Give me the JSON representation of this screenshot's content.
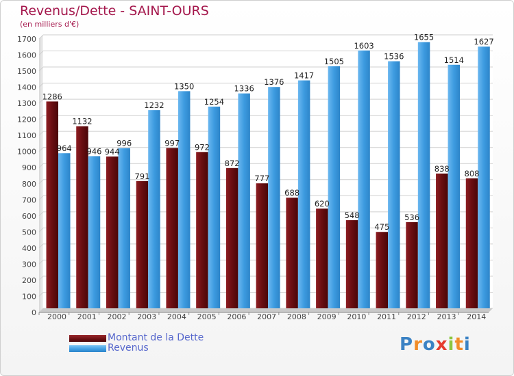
{
  "header": {
    "title": "Revenus/Dette - SAINT-OURS",
    "subtitle": "(en milliers d'€)"
  },
  "legend": {
    "items": [
      {
        "label": "Montant de la Dette",
        "color": "#6b0f12"
      },
      {
        "label": "Revenus",
        "color": "#3d9be0"
      }
    ]
  },
  "logo": {
    "text": "Proxiti",
    "letters": [
      "P",
      "r",
      "o",
      "x",
      "i",
      "t",
      "i"
    ],
    "colors": [
      "#3b82c4",
      "#f28c28",
      "#3b82c4",
      "#e63b2e",
      "#8cc63f",
      "#f28c28",
      "#3b82c4"
    ]
  },
  "chart_data": {
    "type": "bar",
    "title": "Revenus/Dette - SAINT-OURS",
    "subtitle": "(en milliers d'€)",
    "xlabel": "",
    "ylabel": "",
    "ylim": [
      0,
      1700
    ],
    "yticks": [
      0,
      100,
      200,
      300,
      400,
      500,
      600,
      700,
      800,
      900,
      1000,
      1100,
      1200,
      1300,
      1400,
      1500,
      1600,
      1700
    ],
    "grid": true,
    "legend_position": "bottom-left",
    "categories": [
      "2000",
      "2001",
      "2002",
      "2003",
      "2004",
      "2005",
      "2006",
      "2007",
      "2008",
      "2009",
      "2010",
      "2011",
      "2012",
      "2013",
      "2014"
    ],
    "series": [
      {
        "name": "Montant de la Dette",
        "color": "#6b0f12",
        "values": [
          1286,
          1132,
          944,
          791,
          997,
          972,
          872,
          777,
          688,
          620,
          548,
          475,
          536,
          838,
          808
        ]
      },
      {
        "name": "Revenus",
        "color": "#3d9be0",
        "values": [
          964,
          946,
          996,
          1232,
          1350,
          1254,
          1336,
          1376,
          1417,
          1505,
          1603,
          1536,
          1655,
          1514,
          1627
        ]
      }
    ]
  }
}
